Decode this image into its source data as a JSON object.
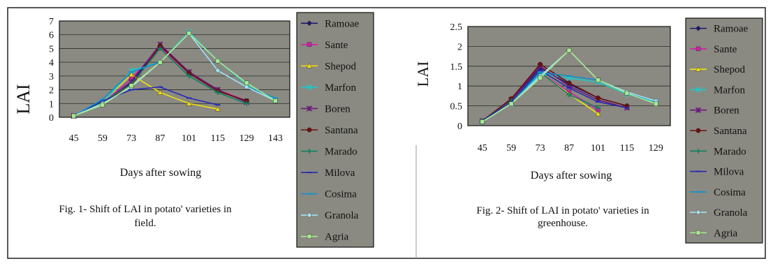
{
  "colors": {
    "plot_bg": "#8a8a82",
    "legend_bg": "#8a8a82",
    "frame": "#111111",
    "gridline": "#2a2a2a"
  },
  "chart_data": [
    {
      "type": "line",
      "ylabel": "LAI",
      "xlabel": "Days after sowing",
      "caption": "Fig. 1- Shift of LAI in potato' varieties in field.",
      "caption_lines": [
        "Fig. 1- Shift of LAI in potato' varieties in",
        "field."
      ],
      "categories": [
        "45",
        "59",
        "73",
        "87",
        "101",
        "115",
        "129",
        "143"
      ],
      "ylim": [
        0,
        7
      ],
      "yticks": [
        "0",
        "1",
        "2",
        "3",
        "4",
        "5",
        "6",
        "7"
      ],
      "grid": true,
      "legend": "right",
      "series": [
        {
          "name": "Ramoae",
          "color": "#1a1a6e",
          "marker": "diamond",
          "values": [
            0.1,
            1.0,
            2.5,
            5.2,
            3.3,
            2.0,
            1.1,
            null
          ]
        },
        {
          "name": "Sante",
          "color": "#d020a8",
          "marker": "square",
          "values": [
            0.1,
            1.0,
            2.8,
            5.1,
            3.2,
            2.0,
            1.2,
            null
          ]
        },
        {
          "name": "Shepod",
          "color": "#f0e010",
          "marker": "triangle",
          "values": [
            0.1,
            1.1,
            3.1,
            1.8,
            1.0,
            0.6,
            null,
            null
          ]
        },
        {
          "name": "Marfon",
          "color": "#20c8c8",
          "marker": "x",
          "values": [
            0.1,
            1.0,
            3.4,
            4.0,
            6.2,
            4.1,
            2.4,
            1.3
          ]
        },
        {
          "name": "Boren",
          "color": "#6a1a7a",
          "marker": "star",
          "values": [
            0.1,
            1.0,
            2.6,
            5.3,
            3.3,
            2.0,
            1.1,
            null
          ]
        },
        {
          "name": "Santana",
          "color": "#6a1010",
          "marker": "circle",
          "values": [
            0.1,
            1.0,
            2.3,
            5.2,
            3.2,
            1.9,
            1.2,
            null
          ]
        },
        {
          "name": "Marado",
          "color": "#108060",
          "marker": "plus",
          "values": [
            0.1,
            1.1,
            2.4,
            5.0,
            3.0,
            1.8,
            1.0,
            null
          ]
        },
        {
          "name": "Milova",
          "color": "#2828b0",
          "marker": "dash",
          "values": [
            0.1,
            1.2,
            2.0,
            2.2,
            1.4,
            0.9,
            null,
            null
          ]
        },
        {
          "name": "Cosima",
          "color": "#1090d0",
          "marker": "dash",
          "values": [
            0.1,
            1.3,
            3.3,
            4.0,
            6.1,
            3.4,
            2.2,
            1.4
          ]
        },
        {
          "name": "Granola",
          "color": "#a8e0f0",
          "marker": "diamond",
          "values": [
            0.1,
            1.0,
            2.2,
            4.0,
            6.1,
            3.4,
            2.2,
            1.2
          ]
        },
        {
          "name": "Agria",
          "color": "#a8e890",
          "marker": "square",
          "values": [
            0.1,
            0.9,
            2.3,
            4.0,
            6.1,
            4.1,
            2.5,
            1.2
          ]
        }
      ]
    },
    {
      "type": "line",
      "ylabel": "LAI",
      "xlabel": "Days after sowing",
      "caption": "Fig. 2- Shift of LAI in potato' varieties in greenhouse.",
      "caption_lines": [
        "Fig. 2- Shift of LAI in potato' varieties in",
        "greenhouse."
      ],
      "categories": [
        "45",
        "59",
        "73",
        "87",
        "101",
        "115",
        "129"
      ],
      "ylim": [
        0,
        2.5
      ],
      "yticks": [
        "0",
        "0.5",
        "1",
        "1.5",
        "2",
        "2.5"
      ],
      "grid": true,
      "legend": "right",
      "series": [
        {
          "name": "Ramoae",
          "color": "#1a1a6e",
          "marker": "diamond",
          "values": [
            0.12,
            0.65,
            1.45,
            1.05,
            0.7,
            0.5,
            null
          ]
        },
        {
          "name": "Sante",
          "color": "#d020a8",
          "marker": "square",
          "values": [
            0.12,
            0.6,
            1.35,
            0.85,
            0.4,
            null,
            null
          ]
        },
        {
          "name": "Shepod",
          "color": "#f0e010",
          "marker": "triangle",
          "values": [
            0.1,
            0.6,
            1.35,
            0.8,
            0.3,
            null,
            null
          ]
        },
        {
          "name": "Marfon",
          "color": "#20c8c8",
          "marker": "x",
          "values": [
            0.1,
            0.55,
            1.3,
            1.2,
            1.1,
            0.8,
            0.6
          ]
        },
        {
          "name": "Boren",
          "color": "#6a1a7a",
          "marker": "star",
          "values": [
            0.12,
            0.65,
            1.5,
            1.0,
            0.65,
            0.45,
            null
          ]
        },
        {
          "name": "Santana",
          "color": "#6a1010",
          "marker": "circle",
          "values": [
            0.12,
            0.68,
            1.55,
            1.08,
            0.7,
            0.5,
            null
          ]
        },
        {
          "name": "Marado",
          "color": "#108060",
          "marker": "plus",
          "values": [
            0.12,
            0.62,
            1.35,
            0.78,
            0.45,
            null,
            null
          ]
        },
        {
          "name": "Milova",
          "color": "#2828b0",
          "marker": "dash",
          "values": [
            0.12,
            0.6,
            1.4,
            0.95,
            0.6,
            0.45,
            null
          ]
        },
        {
          "name": "Cosima",
          "color": "#1090d0",
          "marker": "dash",
          "values": [
            0.1,
            0.55,
            1.35,
            1.25,
            1.15,
            0.82,
            0.62
          ]
        },
        {
          "name": "Granola",
          "color": "#a8e0f0",
          "marker": "diamond",
          "values": [
            0.1,
            0.55,
            1.25,
            1.9,
            1.15,
            0.85,
            0.62
          ]
        },
        {
          "name": "Agria",
          "color": "#a8e890",
          "marker": "square",
          "values": [
            0.1,
            0.55,
            1.2,
            1.9,
            1.15,
            0.82,
            0.55
          ]
        }
      ]
    }
  ]
}
